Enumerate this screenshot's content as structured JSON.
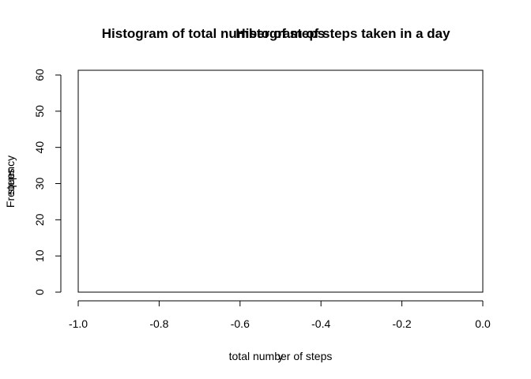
{
  "chart_data": {
    "type": "bar",
    "titles": [
      "Histogram of total number of steps",
      "Histogram of steps taken in a day"
    ],
    "xlabels": [
      "total number of steps",
      "y"
    ],
    "ylabels": [
      "Frequency",
      "steps"
    ],
    "xlim": [
      -1.0,
      0.0
    ],
    "ylim": [
      0,
      60
    ],
    "xticks": [
      "-1.0",
      "-0.8",
      "-0.6",
      "-0.4",
      "-0.2",
      "0.0"
    ],
    "yticks": [
      "0",
      "10",
      "20",
      "30",
      "40",
      "50",
      "60"
    ],
    "categories": [],
    "values": [],
    "grid": false,
    "legend": "none"
  }
}
